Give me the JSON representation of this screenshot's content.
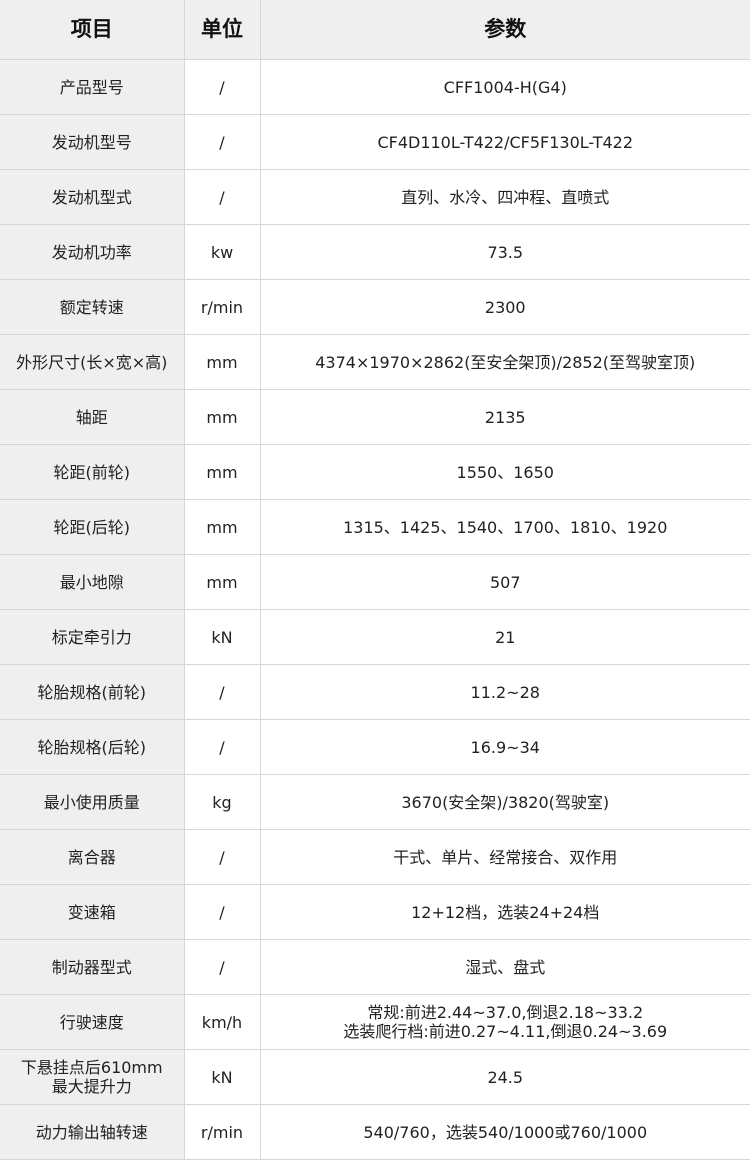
{
  "header": {
    "item": "项目",
    "unit": "单位",
    "param": "参数"
  },
  "rows": [
    {
      "item": "产品型号",
      "unit": "/",
      "value": "CFF1004-H(G4)"
    },
    {
      "item": "发动机型号",
      "unit": "/",
      "value": "CF4D110L-T422/CF5F130L-T422"
    },
    {
      "item": "发动机型式",
      "unit": "/",
      "value": "直列、水冷、四冲程、直喷式"
    },
    {
      "item": "发动机功率",
      "unit": "kw",
      "value": "73.5"
    },
    {
      "item": "额定转速",
      "unit": "r/min",
      "value": "2300"
    },
    {
      "item": "外形尺寸(长×宽×高)",
      "unit": "mm",
      "value": "4374×1970×2862(至安全架顶)/2852(至驾驶室顶)"
    },
    {
      "item": "轴距",
      "unit": "mm",
      "value": "2135"
    },
    {
      "item": "轮距(前轮)",
      "unit": "mm",
      "value": "1550、1650"
    },
    {
      "item": "轮距(后轮)",
      "unit": "mm",
      "value": "1315、1425、1540、1700、1810、1920"
    },
    {
      "item": "最小地隙",
      "unit": "mm",
      "value": "507"
    },
    {
      "item": "标定牵引力",
      "unit": "kN",
      "value": "21"
    },
    {
      "item": "轮胎规格(前轮)",
      "unit": "/",
      "value": "11.2~28"
    },
    {
      "item": "轮胎规格(后轮)",
      "unit": "/",
      "value": "16.9~34"
    },
    {
      "item": "最小使用质量",
      "unit": "kg",
      "value": "3670(安全架)/3820(驾驶室)"
    },
    {
      "item": "离合器",
      "unit": "/",
      "value": "干式、单片、经常接合、双作用"
    },
    {
      "item": "变速箱",
      "unit": "/",
      "value": "12+12档，选装24+24档"
    },
    {
      "item": "制动器型式",
      "unit": "/",
      "value": "湿式、盘式"
    },
    {
      "item": "行驶速度",
      "unit": "km/h",
      "value": "常规:前进2.44~37.0,倒退2.18~33.2\n选装爬行档:前进0.27~4.11,倒退0.24~3.69"
    },
    {
      "item": "下悬挂点后610mm\n最大提升力",
      "unit": "kN",
      "value": "24.5"
    },
    {
      "item": "动力输出轴转速",
      "unit": "r/min",
      "value": "540/760，选装540/1000或760/1000"
    }
  ]
}
